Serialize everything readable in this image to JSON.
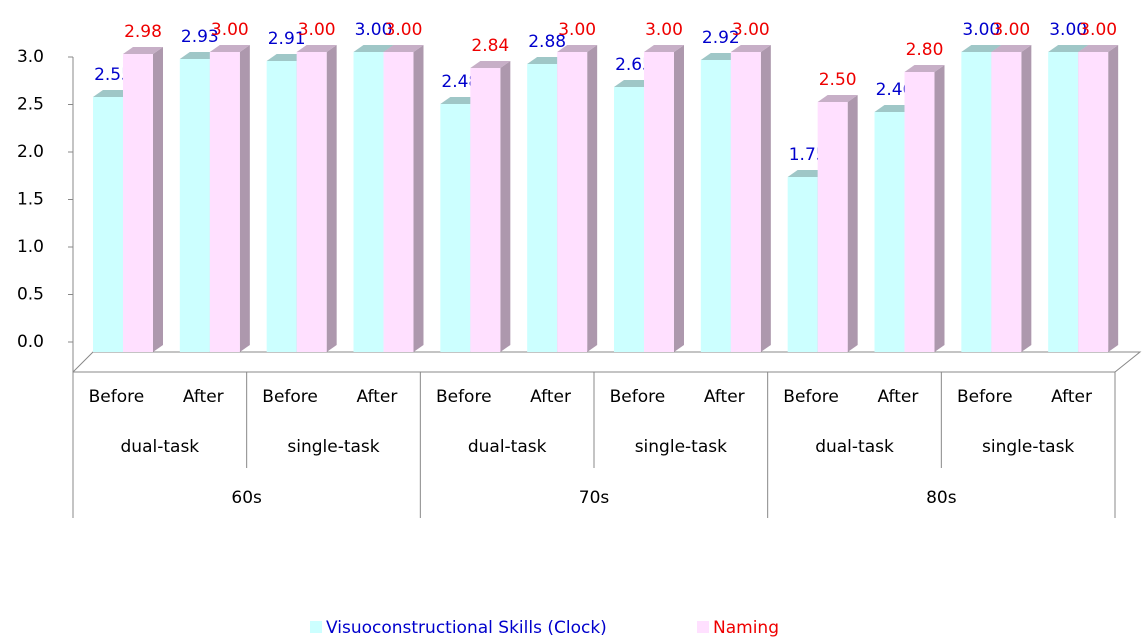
{
  "chart_data": {
    "type": "bar3d",
    "categories": [
      "Before",
      "After",
      "Before",
      "After",
      "Before",
      "After",
      "Before",
      "After",
      "Before",
      "After",
      "Before",
      "After"
    ],
    "groups": [
      {
        "name": "60s",
        "subgroups": [
          "dual-task",
          "single-task"
        ]
      },
      {
        "name": "70s",
        "subgroups": [
          "dual-task",
          "single-task"
        ]
      },
      {
        "name": "80s",
        "subgroups": [
          "dual-task",
          "single-task"
        ]
      }
    ],
    "series": [
      {
        "name": "Visuoconstructional Skills (Clock)",
        "color": "#ccffff",
        "label_color": "#0000cc",
        "values": [
          2.55,
          2.93,
          2.91,
          3,
          2.48,
          2.88,
          2.65,
          2.92,
          1.75,
          2.4,
          3,
          3
        ],
        "value_labels": [
          "2.55",
          "2.93",
          "2.91",
          "3.00",
          "2.48",
          "2.88",
          "2.65",
          "2.92",
          "1.75",
          "2.40",
          "3.00",
          "3.00"
        ]
      },
      {
        "name": "Naming",
        "color": "#ffe0ff",
        "label_color": "#ee0000",
        "values": [
          2.98,
          3,
          3,
          3,
          2.84,
          3,
          3,
          3,
          2.5,
          2.8,
          3,
          3
        ],
        "value_labels": [
          "2.98",
          "3.00",
          "3.00",
          "3.00",
          "2.84",
          "3.00",
          "3.00",
          "3.00",
          "2.50",
          "2.80",
          "3.00",
          "3.00"
        ]
      }
    ],
    "ylim": [
      0,
      3
    ],
    "yticks": [
      {
        "value": 0,
        "label": "0.0"
      },
      {
        "value": 0.5,
        "label": "0.5"
      },
      {
        "value": 1,
        "label": "1.0"
      },
      {
        "value": 1.5,
        "label": "1.5"
      },
      {
        "value": 2,
        "label": "2.0"
      },
      {
        "value": 2.5,
        "label": "2.5"
      },
      {
        "value": 3,
        "label": "3.0"
      }
    ],
    "legend": "bottom"
  }
}
